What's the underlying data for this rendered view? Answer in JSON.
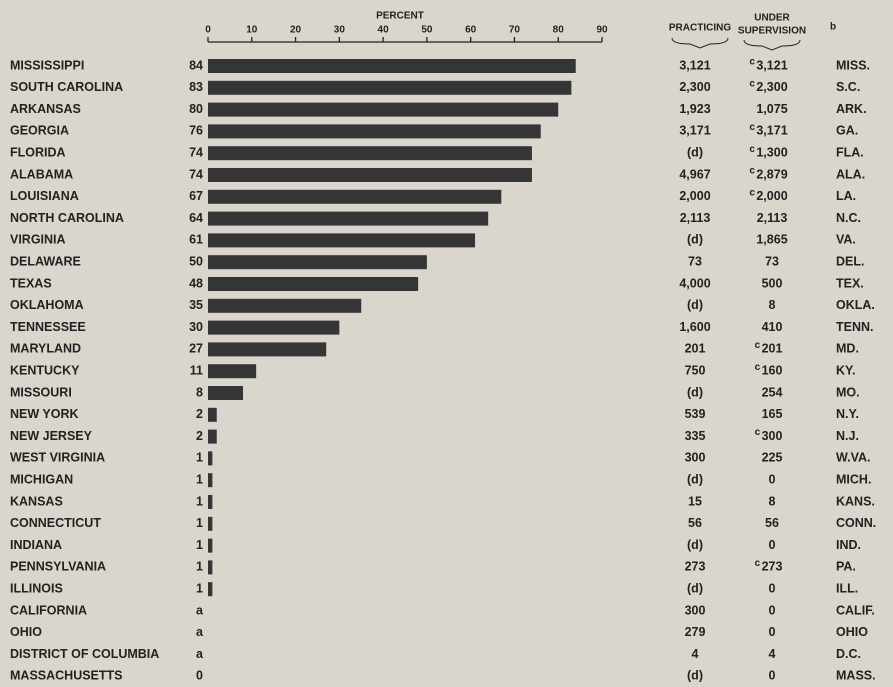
{
  "chart_data": {
    "type": "bar",
    "x_label": "PERCENT",
    "xlim": [
      0,
      90
    ],
    "xticks": [
      0,
      10,
      20,
      30,
      40,
      50,
      60,
      70,
      80,
      90
    ],
    "color": "#353535",
    "categories": [
      "MISSISSIPPI",
      "SOUTH CAROLINA",
      "ARKANSAS",
      "GEORGIA",
      "FLORIDA",
      "ALABAMA",
      "LOUISIANA",
      "NORTH CAROLINA",
      "VIRGINIA",
      "DELAWARE",
      "TEXAS",
      "OKLAHOMA",
      "TENNESSEE",
      "MARYLAND",
      "KENTUCKY",
      "MISSOURI",
      "NEW YORK",
      "NEW JERSEY",
      "WEST VIRGINIA",
      "MICHIGAN",
      "KANSAS",
      "CONNECTICUT",
      "INDIANA",
      "PENNSYLVANIA",
      "ILLINOIS",
      "CALIFORNIA",
      "OHIO",
      "DISTRICT OF COLUMBIA",
      "MASSACHUSETTS"
    ],
    "values": [
      84,
      83,
      80,
      76,
      74,
      74,
      67,
      64,
      61,
      50,
      48,
      35,
      30,
      27,
      11,
      8,
      2,
      2,
      1,
      1,
      1,
      1,
      1,
      1,
      1,
      null,
      null,
      null,
      0
    ],
    "value_labels": [
      "84",
      "83",
      "80",
      "76",
      "74",
      "74",
      "67",
      "64",
      "61",
      "50",
      "48",
      "35",
      "30",
      "27",
      "11",
      "8",
      "2",
      "2",
      "1",
      "1",
      "1",
      "1",
      "1",
      "1",
      "1",
      "a",
      "a",
      "a",
      "0"
    ],
    "practicing_header": "PRACTICING",
    "practicing": [
      "3,121",
      "2,300",
      "1,923",
      "3,171",
      "(d)",
      "4,967",
      "2,000",
      "2,113",
      "(d)",
      "73",
      "4,000",
      "(d)",
      "1,600",
      "201",
      "750",
      "(d)",
      "539",
      "335",
      "300",
      "(d)",
      "15",
      "56",
      "(d)",
      "273",
      "(d)",
      "300",
      "279",
      "4",
      "(d)"
    ],
    "supervision_header": [
      "UNDER",
      "SUPERVISION"
    ],
    "supervision_header_note": "b",
    "supervision": [
      "3,121",
      "2,300",
      "1,075",
      "3,171",
      "1,300",
      "2,879",
      "2,000",
      "2,113",
      "1,865",
      "73",
      "500",
      "8",
      "410",
      "201",
      "160",
      "254",
      "165",
      "300",
      "225",
      "0",
      "8",
      "56",
      "0",
      "273",
      "0",
      "0",
      "0",
      "4",
      "0"
    ],
    "supervision_notes": [
      "c",
      "c",
      null,
      "c",
      "c",
      "c",
      "c",
      null,
      null,
      null,
      null,
      null,
      null,
      "c",
      "c",
      null,
      null,
      "c",
      null,
      null,
      null,
      null,
      null,
      "c",
      null,
      null,
      null,
      null,
      null
    ],
    "abbreviations": [
      "MISS.",
      "S.C.",
      "ARK.",
      "GA.",
      "FLA.",
      "ALA.",
      "LA.",
      "N.C.",
      "VA.",
      "DEL.",
      "TEX.",
      "OKLA.",
      "TENN.",
      "MD.",
      "KY.",
      "MO.",
      "N.Y.",
      "N.J.",
      "W.VA.",
      "MICH.",
      "KANS.",
      "CONN.",
      "IND.",
      "PA.",
      "ILL.",
      "CALIF.",
      "OHIO",
      "D.C.",
      "MASS."
    ]
  }
}
